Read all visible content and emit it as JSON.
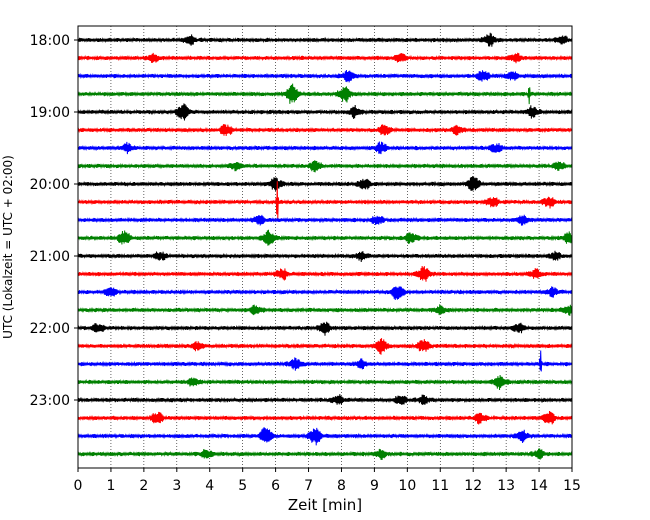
{
  "chart_data": {
    "type": "line",
    "title": "",
    "xlabel": "Zeit  [min]",
    "ylabel": "UTC (Lokalzeit = UTC + 02:00)",
    "xlim": [
      0,
      15
    ],
    "x_ticks": [
      0,
      1,
      2,
      3,
      4,
      5,
      6,
      7,
      8,
      9,
      10,
      11,
      12,
      13,
      14,
      15
    ],
    "x_tick_labels": [
      "0",
      "1",
      "2",
      "3",
      "4",
      "5",
      "6",
      "7",
      "8",
      "9",
      "10",
      "11",
      "12",
      "13",
      "14",
      "15"
    ],
    "grid": "vertical dotted",
    "y_tick_labels": [
      {
        "row": 0,
        "label": "18:00"
      },
      {
        "row": 4,
        "label": "19:00"
      },
      {
        "row": 8,
        "label": "20:00"
      },
      {
        "row": 12,
        "label": "21:00"
      },
      {
        "row": 16,
        "label": "22:00"
      },
      {
        "row": 20,
        "label": "23:00"
      }
    ],
    "trace_colors": [
      "#000000",
      "#ff0000",
      "#0000ff",
      "#008000"
    ],
    "series": [
      {
        "start": "18:00",
        "color": "#000000",
        "events": [
          [
            3.4,
            4
          ],
          [
            12.5,
            6
          ],
          [
            14.7,
            4
          ]
        ]
      },
      {
        "start": "18:15",
        "color": "#ff0000",
        "events": [
          [
            2.3,
            4
          ],
          [
            9.8,
            4
          ],
          [
            13.3,
            4
          ]
        ]
      },
      {
        "start": "18:30",
        "color": "#0000ff",
        "events": [
          [
            8.2,
            5
          ],
          [
            12.3,
            5
          ],
          [
            13.2,
            4
          ]
        ]
      },
      {
        "start": "18:45",
        "color": "#008000",
        "events": [
          [
            6.5,
            9
          ],
          [
            8.1,
            8
          ],
          [
            13.7,
            11
          ]
        ]
      },
      {
        "start": "19:00",
        "color": "#000000",
        "events": [
          [
            3.2,
            8
          ],
          [
            8.4,
            5
          ],
          [
            13.8,
            5
          ]
        ]
      },
      {
        "start": "19:15",
        "color": "#ff0000",
        "events": [
          [
            4.5,
            5
          ],
          [
            9.3,
            5
          ],
          [
            11.5,
            4
          ]
        ]
      },
      {
        "start": "19:30",
        "color": "#0000ff",
        "events": [
          [
            1.5,
            4
          ],
          [
            9.2,
            5
          ],
          [
            12.7,
            4
          ]
        ]
      },
      {
        "start": "19:45",
        "color": "#008000",
        "events": [
          [
            4.8,
            4
          ],
          [
            7.2,
            5
          ],
          [
            14.6,
            4
          ]
        ]
      },
      {
        "start": "20:00",
        "color": "#000000",
        "events": [
          [
            6.0,
            6
          ],
          [
            8.7,
            5
          ],
          [
            12.0,
            7
          ]
        ]
      },
      {
        "start": "20:15",
        "color": "#ff0000",
        "events": [
          [
            6.05,
            26
          ],
          [
            12.6,
            5
          ],
          [
            14.3,
            5
          ]
        ]
      },
      {
        "start": "20:30",
        "color": "#0000ff",
        "events": [
          [
            5.5,
            4
          ],
          [
            9.1,
            4
          ],
          [
            13.5,
            4
          ]
        ]
      },
      {
        "start": "20:45",
        "color": "#008000",
        "events": [
          [
            1.4,
            7
          ],
          [
            5.8,
            7
          ],
          [
            10.1,
            5
          ],
          [
            14.9,
            5
          ]
        ]
      },
      {
        "start": "21:00",
        "color": "#000000",
        "events": [
          [
            2.5,
            4
          ],
          [
            8.6,
            4
          ],
          [
            14.5,
            4
          ]
        ]
      },
      {
        "start": "21:15",
        "color": "#ff0000",
        "events": [
          [
            6.2,
            5
          ],
          [
            10.5,
            7
          ],
          [
            13.9,
            4
          ]
        ]
      },
      {
        "start": "21:30",
        "color": "#0000ff",
        "events": [
          [
            1.0,
            4
          ],
          [
            9.7,
            7
          ],
          [
            14.4,
            4
          ]
        ]
      },
      {
        "start": "21:45",
        "color": "#008000",
        "events": [
          [
            5.4,
            4
          ],
          [
            11.0,
            4
          ],
          [
            14.9,
            4
          ]
        ]
      },
      {
        "start": "22:00",
        "color": "#000000",
        "events": [
          [
            0.6,
            4
          ],
          [
            7.5,
            6
          ],
          [
            13.4,
            4
          ]
        ]
      },
      {
        "start": "22:15",
        "color": "#ff0000",
        "events": [
          [
            3.6,
            4
          ],
          [
            9.2,
            7
          ],
          [
            10.5,
            6
          ]
        ]
      },
      {
        "start": "22:30",
        "color": "#0000ff",
        "events": [
          [
            6.6,
            5
          ],
          [
            8.6,
            4
          ],
          [
            14.05,
            14
          ]
        ]
      },
      {
        "start": "22:45",
        "color": "#008000",
        "events": [
          [
            3.5,
            4
          ],
          [
            12.8,
            6
          ]
        ]
      },
      {
        "start": "23:00",
        "color": "#000000",
        "events": [
          [
            7.9,
            4
          ],
          [
            9.8,
            4
          ],
          [
            10.5,
            4
          ]
        ]
      },
      {
        "start": "23:15",
        "color": "#ff0000",
        "events": [
          [
            2.4,
            5
          ],
          [
            12.2,
            5
          ],
          [
            14.3,
            6
          ]
        ]
      },
      {
        "start": "23:30",
        "color": "#0000ff",
        "events": [
          [
            5.7,
            8
          ],
          [
            7.2,
            8
          ],
          [
            13.5,
            5
          ]
        ]
      },
      {
        "start": "23:45",
        "color": "#008000",
        "events": [
          [
            3.9,
            4
          ],
          [
            9.2,
            4
          ],
          [
            14.0,
            4
          ]
        ]
      }
    ]
  }
}
